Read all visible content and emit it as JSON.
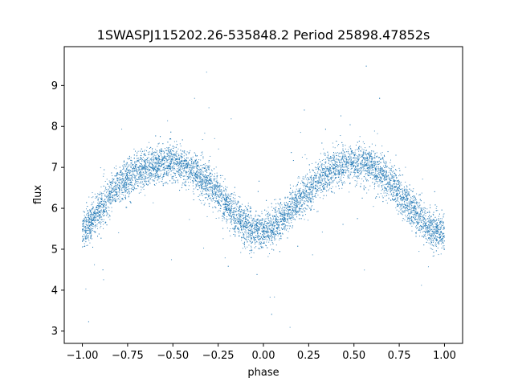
{
  "chart_data": {
    "type": "scatter",
    "title": "1SWASPJ115202.26-535848.2 Period 25898.47852s",
    "xlabel": "phase",
    "ylabel": "flux",
    "xlim": [
      -1.1,
      1.1
    ],
    "ylim": [
      2.7,
      9.95
    ],
    "x_ticks": [
      -1.0,
      -0.75,
      -0.5,
      -0.25,
      0.0,
      0.25,
      0.5,
      0.75,
      1.0
    ],
    "x_tick_labels": [
      "−1.00",
      "−0.75",
      "−0.50",
      "−0.25",
      "0.00",
      "0.25",
      "0.50",
      "0.75",
      "1.00"
    ],
    "y_ticks": [
      3,
      4,
      5,
      6,
      7,
      8,
      9
    ],
    "y_tick_labels": [
      "3",
      "4",
      "5",
      "6",
      "7",
      "8",
      "9"
    ],
    "point_color": "#1f77b4",
    "grid": false,
    "legend": "none",
    "series": [
      {
        "x": [
          -1.0,
          -0.95,
          -0.9,
          -0.85,
          -0.8,
          -0.75,
          -0.7,
          -0.65,
          -0.6,
          -0.55,
          -0.5,
          -0.45,
          -0.4,
          -0.35,
          -0.3,
          -0.25,
          -0.2,
          -0.15,
          -0.1,
          -0.05,
          0.0,
          0.05,
          0.1,
          0.15,
          0.2,
          0.25,
          0.3,
          0.35,
          0.4,
          0.45,
          0.5,
          0.55,
          0.6,
          0.65,
          0.7,
          0.75,
          0.8,
          0.85,
          0.9,
          0.95,
          1.0
        ],
        "y": [
          5.4,
          5.7,
          6.0,
          6.3,
          6.55,
          6.75,
          6.9,
          7.0,
          7.05,
          7.1,
          7.1,
          7.05,
          6.95,
          6.8,
          6.6,
          6.35,
          6.05,
          5.8,
          5.6,
          5.45,
          5.4,
          5.5,
          5.7,
          5.95,
          6.2,
          6.45,
          6.7,
          6.85,
          7.0,
          7.05,
          7.1,
          7.05,
          7.0,
          6.85,
          6.6,
          6.35,
          6.1,
          5.85,
          5.6,
          5.45,
          5.4
        ]
      }
    ]
  }
}
